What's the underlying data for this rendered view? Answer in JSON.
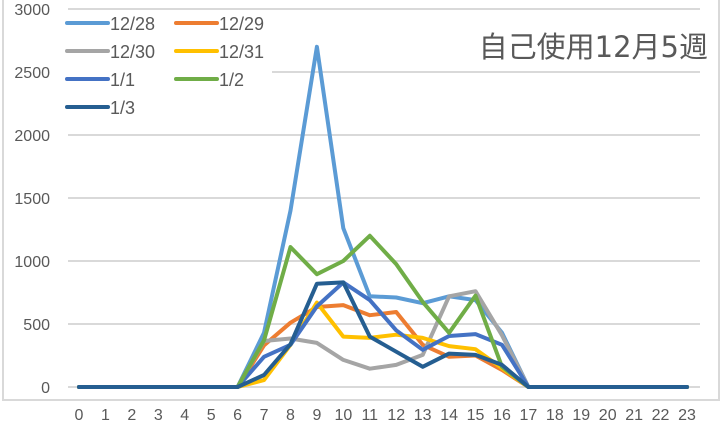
{
  "chart_data": {
    "type": "line",
    "title": "自己使用12月5週",
    "xlabel": "",
    "ylabel": "",
    "ylim": [
      0,
      3000
    ],
    "yticks": [
      0,
      500,
      1000,
      1500,
      2000,
      2500,
      3000
    ],
    "grid": true,
    "legend_position": "top-left",
    "x": [
      0,
      1,
      2,
      3,
      4,
      5,
      6,
      7,
      8,
      9,
      10,
      11,
      12,
      13,
      14,
      15,
      16,
      17,
      18,
      19,
      20,
      21,
      22,
      23
    ],
    "series": [
      {
        "name": "12/28",
        "color": "#5B9BD5",
        "values": [
          0,
          0,
          0,
          0,
          0,
          0,
          0,
          430,
          1400,
          2700,
          1260,
          720,
          710,
          665,
          720,
          690,
          430,
          0,
          0,
          0,
          0,
          0,
          0,
          0
        ]
      },
      {
        "name": "12/29",
        "color": "#ED7D31",
        "values": [
          0,
          0,
          0,
          0,
          0,
          0,
          0,
          330,
          510,
          635,
          650,
          570,
          595,
          335,
          240,
          250,
          135,
          0,
          0,
          0,
          0,
          0,
          0,
          0
        ]
      },
      {
        "name": "12/30",
        "color": "#A5A5A5",
        "values": [
          0,
          0,
          0,
          0,
          0,
          0,
          0,
          365,
          385,
          350,
          215,
          145,
          175,
          255,
          720,
          760,
          410,
          0,
          0,
          0,
          0,
          0,
          0,
          0
        ]
      },
      {
        "name": "12/31",
        "color": "#FFC000",
        "values": [
          0,
          0,
          0,
          0,
          0,
          0,
          0,
          55,
          335,
          670,
          400,
          390,
          415,
          390,
          325,
          300,
          150,
          0,
          0,
          0,
          0,
          0,
          0,
          0
        ]
      },
      {
        "name": "1/1",
        "color": "#4472C4",
        "values": [
          0,
          0,
          0,
          0,
          0,
          0,
          0,
          240,
          335,
          640,
          830,
          690,
          450,
          295,
          405,
          420,
          335,
          0,
          0,
          0,
          0,
          0,
          0,
          0
        ]
      },
      {
        "name": "1/2",
        "color": "#70AD47",
        "values": [
          0,
          0,
          0,
          0,
          0,
          0,
          0,
          370,
          1110,
          895,
          1000,
          1200,
          975,
          675,
          430,
          725,
          160,
          0,
          0,
          0,
          0,
          0,
          0,
          0
        ]
      },
      {
        "name": "1/3",
        "color": "#255E91",
        "values": [
          0,
          0,
          0,
          0,
          0,
          0,
          0,
          95,
          340,
          820,
          830,
          400,
          280,
          160,
          265,
          255,
          175,
          0,
          0,
          0,
          0,
          0,
          0,
          0
        ]
      }
    ]
  },
  "title": "自己使用12月5週",
  "colors": {
    "gridline": "#D9D9D9",
    "frame": "#D9D9D9",
    "axis_text": "#595959"
  }
}
